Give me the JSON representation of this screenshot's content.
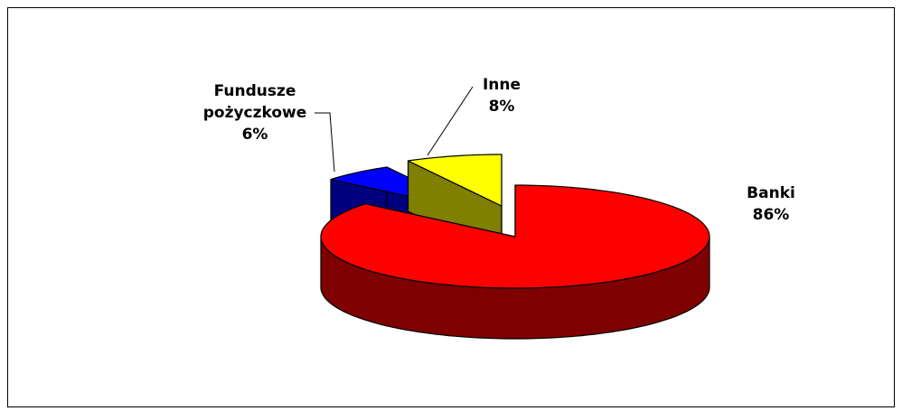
{
  "chart_data": {
    "type": "pie3d",
    "categories": [
      "Banki",
      "Fundusze pożyczkowe",
      "Inne"
    ],
    "values": [
      86,
      6,
      8
    ],
    "value_labels": [
      "86%",
      "6%",
      "8%"
    ],
    "colors": [
      "#ff0000",
      "#0000ff",
      "#ffff00"
    ],
    "exploded": [
      false,
      true,
      true
    ]
  }
}
